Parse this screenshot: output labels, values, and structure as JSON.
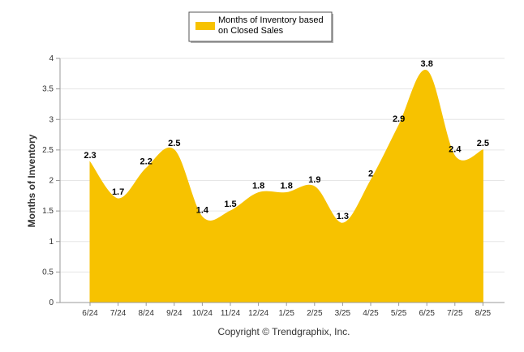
{
  "chart_data": {
    "type": "area",
    "categories": [
      "6/24",
      "7/24",
      "8/24",
      "9/24",
      "10/24",
      "11/24",
      "12/24",
      "1/25",
      "2/25",
      "3/25",
      "4/25",
      "5/25",
      "6/25",
      "7/25",
      "8/25"
    ],
    "series": [
      {
        "name": "Months of Inventory based on Closed Sales",
        "values": [
          2.3,
          1.7,
          2.2,
          2.5,
          1.4,
          1.5,
          1.8,
          1.8,
          1.9,
          1.3,
          2,
          2.9,
          3.8,
          2.4,
          2.5
        ],
        "color": "#F7C200"
      }
    ],
    "data_labels": [
      "2.3",
      "1.7",
      "2.2",
      "2.5",
      "1.4",
      "1.5",
      "1.8",
      "1.8",
      "1.9",
      "1.3",
      "2",
      "2.9",
      "3.8",
      "2.4",
      "2.5"
    ],
    "ylabel": "Months of Inventory",
    "xlabel": "",
    "ylim": [
      0,
      4
    ],
    "yticks": [
      "0",
      "0.5",
      "1",
      "1.5",
      "2",
      "2.5",
      "3",
      "3.5",
      "4"
    ],
    "grid": true,
    "legend_position": "top-center",
    "legend_lines": [
      "Months of Inventory based",
      "on Closed Sales"
    ]
  },
  "footer": "Copyright © Trendgraphix, Inc."
}
